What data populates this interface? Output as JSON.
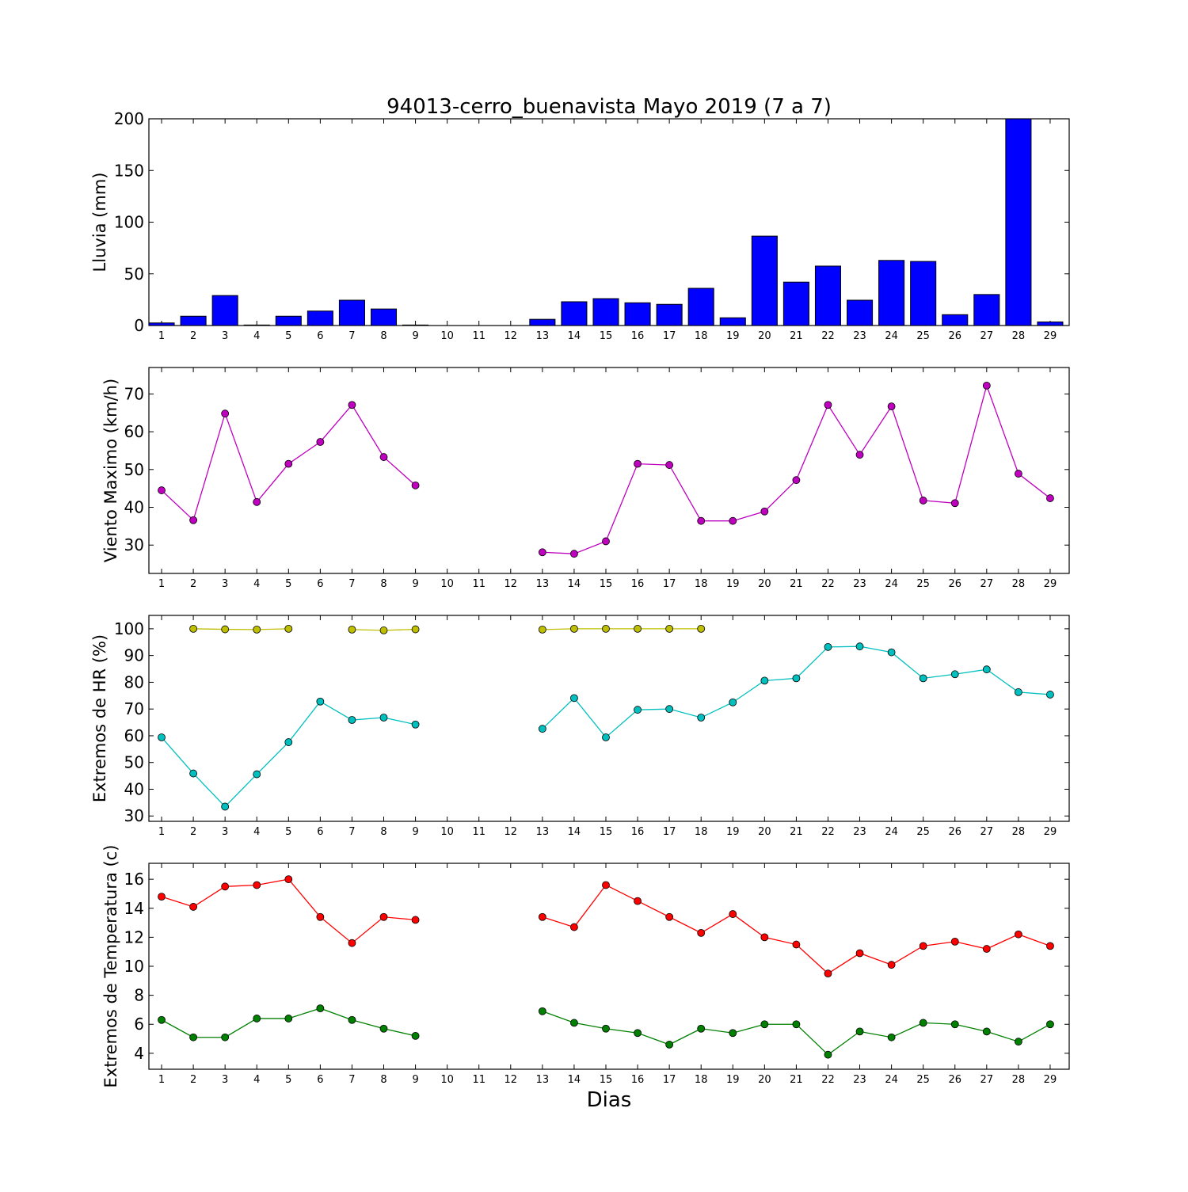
{
  "title": "94013-cerro_buenavista Mayo 2019  (7 a 7)",
  "xlabel": "Dias",
  "x_tick_labels": [
    "1",
    "2",
    "3",
    "4",
    "5",
    "6",
    "7",
    "8",
    "9",
    "10",
    "11",
    "12",
    "13",
    "14",
    "15",
    "16",
    "17",
    "18",
    "19",
    "20",
    "21",
    "22",
    "23",
    "24",
    "25",
    "26",
    "27",
    "28",
    "29"
  ],
  "chart_data": [
    {
      "type": "bar",
      "ylabel": "Lluvia (mm)",
      "ylim": [
        0,
        200
      ],
      "yticks": [
        0,
        50,
        100,
        150,
        200
      ],
      "x": [
        1,
        2,
        3,
        4,
        5,
        6,
        7,
        8,
        9,
        10,
        11,
        12,
        13,
        14,
        15,
        16,
        17,
        18,
        19,
        20,
        21,
        22,
        23,
        24,
        25,
        26,
        27,
        28,
        29
      ],
      "series": [
        {
          "color": "#0000ff",
          "values": [
            2.5,
            9,
            29,
            0.5,
            9,
            14,
            24.5,
            16,
            0.5,
            0,
            0,
            0,
            6,
            23,
            26,
            22,
            20.5,
            36,
            7.5,
            86.5,
            42,
            57.5,
            24.5,
            63,
            62,
            10.5,
            30,
            200,
            3.5
          ]
        }
      ]
    },
    {
      "type": "line",
      "ylabel": "Viento Maximo (km/h)",
      "ylim": [
        22.5,
        77
      ],
      "yticks": [
        30,
        40,
        50,
        60,
        70
      ],
      "x": [
        1,
        2,
        3,
        4,
        5,
        6,
        7,
        8,
        9,
        10,
        11,
        12,
        13,
        14,
        15,
        16,
        17,
        18,
        19,
        20,
        21,
        22,
        23,
        24,
        25,
        26,
        27,
        28,
        29
      ],
      "series": [
        {
          "color": "#bf00bf",
          "values": [
            44.5,
            36.6,
            64.8,
            41.4,
            51.5,
            57.3,
            67.1,
            53.3,
            45.8,
            null,
            null,
            null,
            28.1,
            27.7,
            31.0,
            51.5,
            51.2,
            36.4,
            36.4,
            38.9,
            47.2,
            67.1,
            53.9,
            66.7,
            41.8,
            41.1,
            72.2,
            48.9,
            42.4
          ]
        }
      ]
    },
    {
      "type": "line",
      "ylabel": "Extremos de HR (%)",
      "ylim": [
        28,
        105
      ],
      "yticks": [
        30,
        40,
        50,
        60,
        70,
        80,
        90,
        100
      ],
      "x": [
        1,
        2,
        3,
        4,
        5,
        6,
        7,
        8,
        9,
        10,
        11,
        12,
        13,
        14,
        15,
        16,
        17,
        18,
        19,
        20,
        21,
        22,
        23,
        24,
        25,
        26,
        27,
        28,
        29
      ],
      "series": [
        {
          "color": "#bfbf00",
          "values": [
            null,
            100,
            99.8,
            99.7,
            100,
            null,
            99.7,
            99.4,
            99.8,
            null,
            null,
            null,
            99.7,
            100,
            100,
            100,
            100,
            100,
            null,
            null,
            null,
            null,
            null,
            null,
            null,
            null,
            null,
            null,
            null
          ]
        },
        {
          "color": "#00bfbf",
          "values": [
            59.4,
            45.9,
            33.5,
            45.6,
            57.6,
            72.8,
            65.9,
            66.8,
            64.2,
            null,
            null,
            null,
            62.6,
            74.1,
            59.4,
            69.7,
            70.0,
            66.8,
            72.5,
            80.6,
            81.5,
            93.2,
            93.4,
            91.2,
            81.5,
            83.0,
            84.8,
            76.3,
            75.4
          ]
        }
      ]
    },
    {
      "type": "line",
      "ylabel": "Extremos de Temperatura (c)",
      "ylim": [
        2.9,
        17.1
      ],
      "yticks": [
        4,
        6,
        8,
        10,
        12,
        14,
        16
      ],
      "x": [
        1,
        2,
        3,
        4,
        5,
        6,
        7,
        8,
        9,
        10,
        11,
        12,
        13,
        14,
        15,
        16,
        17,
        18,
        19,
        20,
        21,
        22,
        23,
        24,
        25,
        26,
        27,
        28,
        29
      ],
      "series": [
        {
          "color": "#ff0000",
          "values": [
            14.8,
            14.1,
            15.5,
            15.6,
            16.0,
            13.4,
            11.6,
            13.4,
            13.2,
            null,
            null,
            null,
            13.4,
            12.7,
            15.6,
            14.5,
            13.4,
            12.3,
            13.6,
            12.0,
            11.5,
            9.5,
            10.9,
            10.1,
            11.4,
            11.7,
            11.2,
            12.2,
            11.4
          ]
        },
        {
          "color": "#008000",
          "values": [
            6.3,
            5.1,
            5.1,
            6.4,
            6.4,
            7.1,
            6.3,
            5.7,
            5.2,
            null,
            null,
            null,
            6.9,
            6.1,
            5.7,
            5.4,
            4.6,
            5.7,
            5.4,
            6.0,
            6.0,
            3.9,
            5.5,
            5.1,
            6.1,
            6.0,
            5.5,
            4.8,
            6.0
          ]
        }
      ]
    }
  ]
}
